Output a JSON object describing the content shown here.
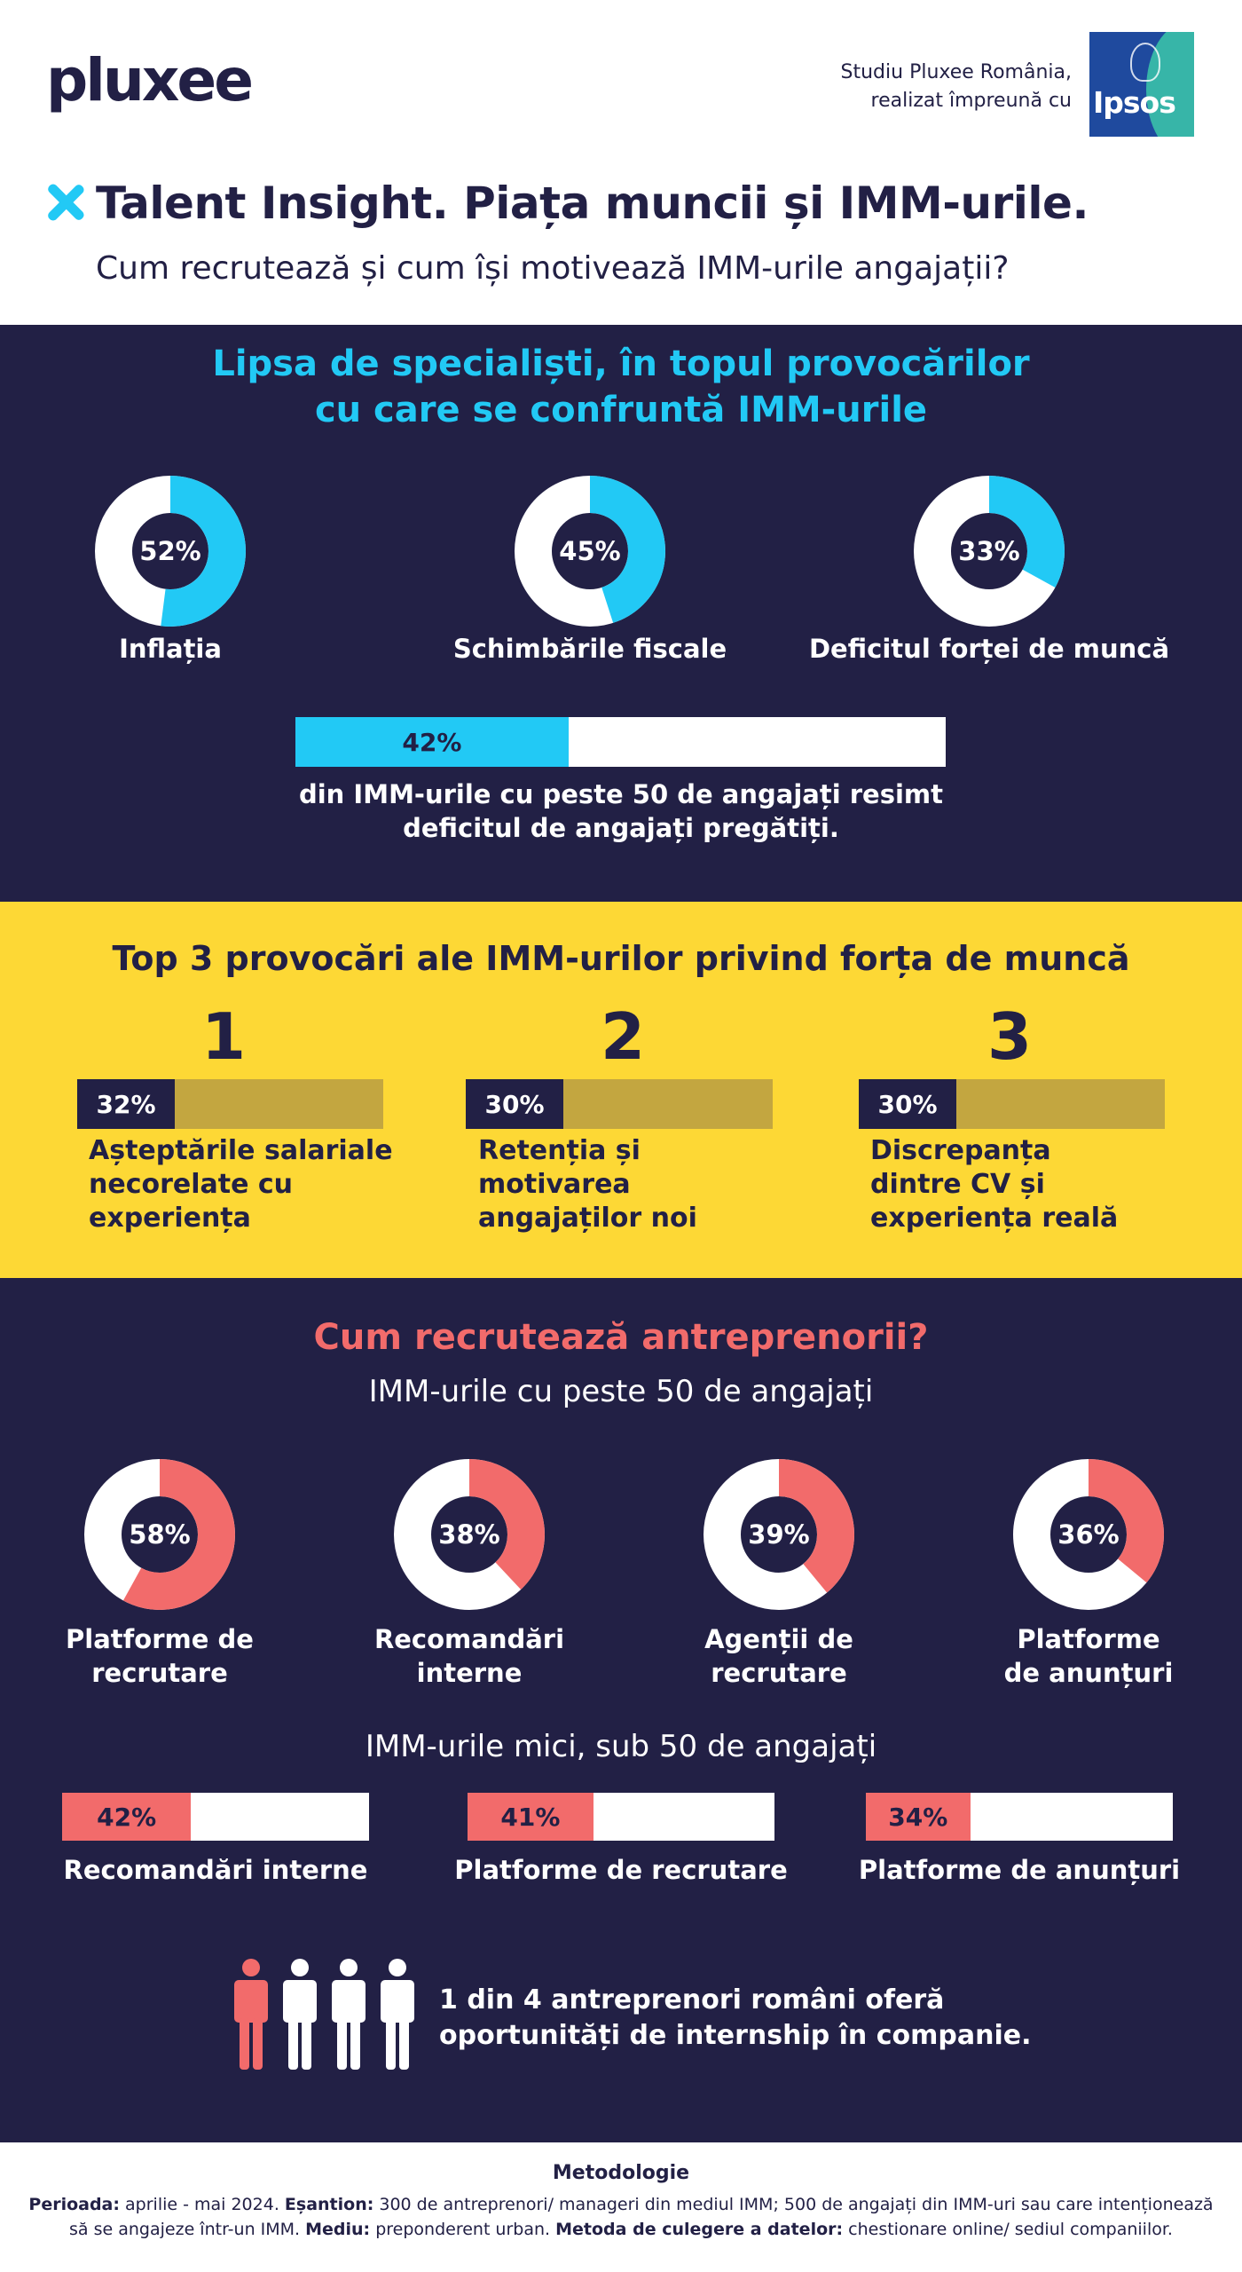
{
  "header": {
    "logo": "pluxee",
    "study_line1": "Studiu Pluxee România,",
    "study_line2": "realizat împreună cu",
    "partner_logo": "Ipsos",
    "title": "Talent Insight. Piața muncii și IMM-urile.",
    "subtitle": "Cum recrutează și cum își motivează IMM-urile angajații?"
  },
  "colors": {
    "navy": "#222045",
    "cyan": "#22c9f5",
    "yellow": "#fdd835",
    "olive": "#c3a640",
    "coral": "#f26b6b",
    "white": "#ffffff"
  },
  "challenges": {
    "heading_line1": "Lipsa de specialiști, în topul provocărilor",
    "heading_line2": "cu care se confruntă IMM-urile",
    "items": [
      {
        "label": "52%",
        "value": 52,
        "caption": "Inflația"
      },
      {
        "label": "45%",
        "value": 45,
        "caption": "Schimbările fiscale"
      },
      {
        "label": "33%",
        "value": 33,
        "caption": "Deficitul forței de muncă"
      }
    ],
    "bar": {
      "label": "42%",
      "value": 42,
      "caption_line1": "din IMM-urile cu peste 50 de angajați resimt",
      "caption_line2": "deficitul de angajați pregătiți."
    }
  },
  "top3": {
    "heading": "Top 3 provocări ale IMM-urilor privind forța de muncă",
    "items": [
      {
        "rank": "1",
        "label": "32%",
        "value": 32,
        "caption_lines": [
          "Așteptările salariale",
          "necorelate cu",
          "experiența"
        ]
      },
      {
        "rank": "2",
        "label": "30%",
        "value": 30,
        "caption_lines": [
          "Retenția și",
          "motivarea",
          "angajaților noi"
        ]
      },
      {
        "rank": "3",
        "label": "30%",
        "value": 30,
        "caption_lines": [
          "Discrepanța",
          "dintre CV și",
          "experiența reală"
        ]
      }
    ]
  },
  "recruiting": {
    "heading": "Cum recrutează antreprenorii?",
    "large_heading": "IMM-urile cu peste 50 de angajați",
    "large": [
      {
        "label": "58%",
        "value": 58,
        "caption_lines": [
          "Platforme de",
          "recrutare"
        ]
      },
      {
        "label": "38%",
        "value": 38,
        "caption_lines": [
          "Recomandări",
          "interne"
        ]
      },
      {
        "label": "39%",
        "value": 39,
        "caption_lines": [
          "Agenții de",
          "recrutare"
        ]
      },
      {
        "label": "36%",
        "value": 36,
        "caption_lines": [
          "Platforme",
          "de anunțuri"
        ]
      }
    ],
    "small_heading": "IMM-urile mici, sub 50 de angajați",
    "small": [
      {
        "label": "42%",
        "value": 42,
        "caption": "Recomandări interne"
      },
      {
        "label": "41%",
        "value": 41,
        "caption": "Platforme de recrutare"
      },
      {
        "label": "34%",
        "value": 34,
        "caption": "Platforme de anunțuri"
      }
    ],
    "internship_line1": "1 din 4 antreprenori români oferă",
    "internship_line2": "oportunități de internship în companie.",
    "internship_ratio": {
      "highlighted": 1,
      "total": 4
    }
  },
  "methodology": {
    "title": "Metodologie",
    "period_label": "Perioada:",
    "period_value": " aprilie - mai 2024. ",
    "sample_label": "Eșantion:",
    "sample_value": " 300 de antreprenori/ manageri din mediul IMM; 500 de angajați din IMM-uri sau care intenționează să se angajeze într-un IMM. ",
    "env_label": "Mediu:",
    "env_value": " preponderent urban. ",
    "method_label": "Metoda de culegere a datelor:",
    "method_value": " chestionare online/ sediul companiilor."
  }
}
